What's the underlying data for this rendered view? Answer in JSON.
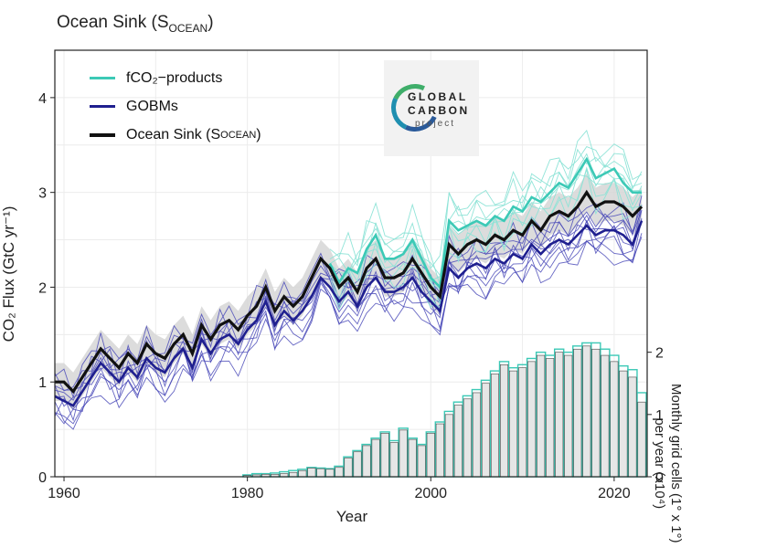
{
  "chart_data": {
    "type": "line",
    "title": "Ocean Sink (S",
    "title_sub": "OCEAN",
    "title_end": ")",
    "xlabel": "Year",
    "ylabel": "CO₂ Flux (GtC yr⁻¹)",
    "ylabel2_line1": "Monthly grid cells (1° x 1°)",
    "ylabel2_line2": "per year (x10⁴)",
    "xlim": [
      1959,
      2023.6
    ],
    "ylim": [
      0,
      4.5
    ],
    "y2lim": [
      0,
      6.85
    ],
    "xticks": [
      1960,
      1980,
      2000,
      2020
    ],
    "yticks": [
      0,
      1,
      2,
      3,
      4
    ],
    "y2ticks": [
      0,
      1,
      2
    ],
    "grid": true,
    "legend_position": "top-left",
    "legend": [
      {
        "label": "fCO₂−products",
        "color": "#3cc9b6"
      },
      {
        "label": "GOBMs",
        "color": "#1f1f8f"
      },
      {
        "label": "Ocean Sink (S",
        "sub": "OCEAN",
        "end": ")",
        "color": "#111111"
      }
    ],
    "logo": {
      "line1": "GLOBAL",
      "line2": "CARBON",
      "line3": "project"
    },
    "colors": {
      "fco2": "#3cc9b6",
      "gobm": "#1f1f8f",
      "gobm_members": "#4a4ab8",
      "fco2_members": "#8be3d6",
      "sink": "#111111",
      "band": "#d6d6d6",
      "bars_fill": "#e6e6e6",
      "bars_edge": "#444444",
      "bars_outline": "#3cc9b6"
    },
    "years": [
      1959,
      1960,
      1961,
      1962,
      1963,
      1964,
      1965,
      1966,
      1967,
      1968,
      1969,
      1970,
      1971,
      1972,
      1973,
      1974,
      1975,
      1976,
      1977,
      1978,
      1979,
      1980,
      1981,
      1982,
      1983,
      1984,
      1985,
      1986,
      1987,
      1988,
      1989,
      1990,
      1991,
      1992,
      1993,
      1994,
      1995,
      1996,
      1997,
      1998,
      1999,
      2000,
      2001,
      2002,
      2003,
      2004,
      2005,
      2006,
      2007,
      2008,
      2009,
      2010,
      2011,
      2012,
      2013,
      2014,
      2015,
      2016,
      2017,
      2018,
      2019,
      2020,
      2021,
      2022,
      2023
    ],
    "series": [
      {
        "name": "Ocean Sink (SOCEAN)",
        "role": "sink",
        "values": [
          1.0,
          1.0,
          0.9,
          1.05,
          1.2,
          1.35,
          1.25,
          1.15,
          1.3,
          1.2,
          1.4,
          1.3,
          1.25,
          1.4,
          1.5,
          1.3,
          1.6,
          1.45,
          1.6,
          1.65,
          1.55,
          1.7,
          1.8,
          2.0,
          1.75,
          1.9,
          1.8,
          1.9,
          2.1,
          2.3,
          2.2,
          2.0,
          2.1,
          1.95,
          2.2,
          2.3,
          2.1,
          2.1,
          2.15,
          2.3,
          2.15,
          2.0,
          1.9,
          2.45,
          2.35,
          2.45,
          2.5,
          2.45,
          2.55,
          2.5,
          2.6,
          2.55,
          2.7,
          2.6,
          2.75,
          2.8,
          2.75,
          2.85,
          3.0,
          2.85,
          2.9,
          2.9,
          2.85,
          2.75,
          2.85
        ]
      },
      {
        "name": "fCO2-products",
        "role": "fco2",
        "values": [
          null,
          null,
          null,
          null,
          null,
          null,
          null,
          null,
          null,
          null,
          null,
          null,
          null,
          null,
          null,
          null,
          null,
          null,
          null,
          null,
          null,
          null,
          null,
          null,
          null,
          null,
          null,
          null,
          null,
          null,
          2.25,
          2.05,
          2.2,
          2.15,
          2.4,
          2.55,
          2.3,
          2.3,
          2.35,
          2.5,
          2.3,
          2.1,
          2.0,
          2.7,
          2.6,
          2.65,
          2.7,
          2.65,
          2.75,
          2.7,
          2.85,
          2.8,
          2.95,
          2.9,
          3.0,
          3.1,
          3.05,
          3.2,
          3.35,
          3.15,
          3.2,
          3.25,
          3.1,
          3.0,
          3.0
        ]
      },
      {
        "name": "GOBMs",
        "role": "gobm",
        "values": [
          0.85,
          0.8,
          0.75,
          0.9,
          1.05,
          1.2,
          1.1,
          1.0,
          1.15,
          1.05,
          1.25,
          1.15,
          1.1,
          1.25,
          1.35,
          1.15,
          1.45,
          1.3,
          1.45,
          1.5,
          1.4,
          1.55,
          1.65,
          1.85,
          1.6,
          1.75,
          1.65,
          1.75,
          1.9,
          2.1,
          2.0,
          1.85,
          1.95,
          1.8,
          2.0,
          2.1,
          1.95,
          1.95,
          2.0,
          2.1,
          1.95,
          1.85,
          1.75,
          2.2,
          2.1,
          2.2,
          2.25,
          2.2,
          2.3,
          2.25,
          2.35,
          2.3,
          2.45,
          2.35,
          2.45,
          2.5,
          2.45,
          2.55,
          2.65,
          2.55,
          2.6,
          2.6,
          2.55,
          2.45,
          2.7
        ]
      }
    ],
    "bars_values": [
      0,
      0,
      0,
      0,
      0,
      0,
      0,
      0,
      0,
      0,
      0,
      0,
      0,
      0,
      0,
      0,
      0,
      0,
      0,
      0,
      0,
      0.02,
      0.03,
      0.04,
      0.04,
      0.05,
      0.07,
      0.1,
      0.14,
      0.13,
      0.12,
      0.15,
      0.3,
      0.4,
      0.5,
      0.6,
      0.7,
      0.55,
      0.75,
      0.6,
      0.5,
      0.7,
      0.85,
      1.0,
      1.15,
      1.25,
      1.35,
      1.5,
      1.65,
      1.8,
      1.7,
      1.75,
      1.85,
      1.95,
      1.9,
      2.0,
      1.95,
      2.05,
      2.1,
      2.05,
      1.95,
      1.85,
      1.7,
      1.6,
      1.2
    ],
    "bars_outline_values": [
      0,
      0,
      0,
      0,
      0,
      0,
      0,
      0,
      0,
      0,
      0,
      0,
      0,
      0,
      0,
      0,
      0,
      0,
      0,
      0,
      0,
      0.03,
      0.05,
      0.05,
      0.06,
      0.08,
      0.1,
      0.12,
      0.15,
      0.14,
      0.13,
      0.17,
      0.32,
      0.42,
      0.52,
      0.62,
      0.72,
      0.58,
      0.78,
      0.62,
      0.52,
      0.72,
      0.88,
      1.05,
      1.2,
      1.3,
      1.4,
      1.55,
      1.7,
      1.85,
      1.75,
      1.8,
      1.9,
      2.0,
      1.95,
      2.05,
      2.0,
      2.1,
      2.15,
      2.15,
      2.05,
      1.95,
      1.78,
      1.72,
      1.35
    ]
  }
}
